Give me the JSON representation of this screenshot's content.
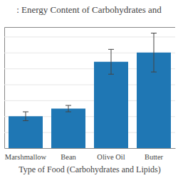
{
  "chart_data": {
    "type": "bar",
    "title": ": Energy Content of Carbohydrates and",
    "x_label": "Type of Food (Carbohydrates and Lipids)",
    "categories": [
      "Marshmallow",
      "Bean",
      "Olive Oil",
      "Butter"
    ],
    "values": [
      10,
      12.4,
      27.1,
      30
    ],
    "errors": [
      1.4,
      1,
      3.9,
      6.1
    ],
    "color": "#1f77b4",
    "ylim": [
      0,
      38
    ],
    "yticks": [
      0,
      5,
      10,
      15,
      20,
      25,
      30,
      35
    ],
    "grid": true,
    "tick_labels": "x"
  }
}
